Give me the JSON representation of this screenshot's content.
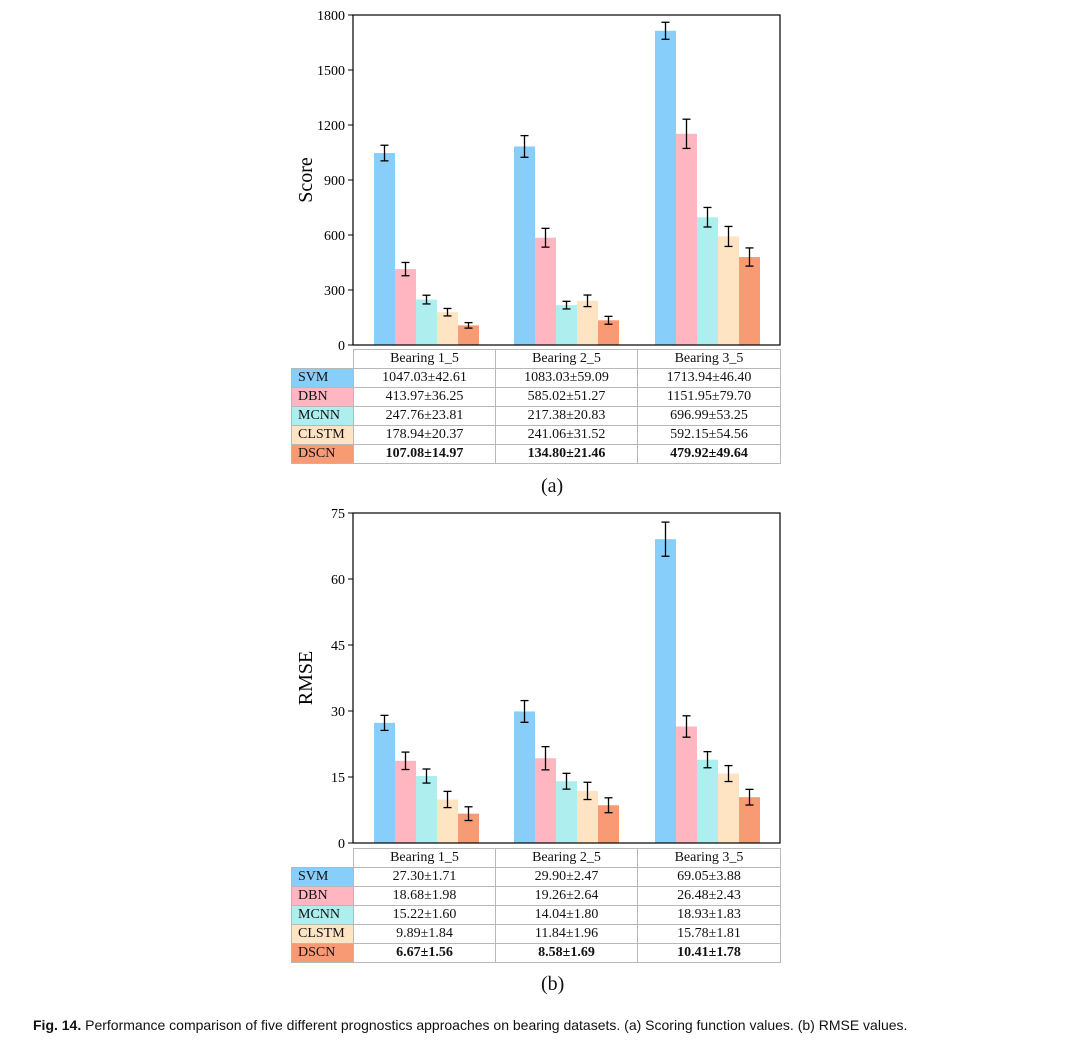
{
  "method_colors": {
    "SVM": "#87cefa",
    "DBN": "#ffb6c1",
    "MCNN": "#aeeeee",
    "CLSTM": "#ffe4c4",
    "DSCN": "#f89a74"
  },
  "chart_data": [
    {
      "id": "a",
      "type": "bar",
      "ylabel": "Score",
      "ylim": [
        0,
        1800
      ],
      "yticks": [
        0,
        300,
        600,
        900,
        1200,
        1500,
        1800
      ],
      "categories": [
        "Bearing 1_5",
        "Bearing 2_5",
        "Bearing 3_5"
      ],
      "series": [
        {
          "name": "SVM",
          "values": [
            1047.03,
            1083.03,
            1713.94
          ],
          "errors": [
            42.61,
            59.09,
            46.4
          ],
          "labels": [
            "1047.03±42.61",
            "1083.03±59.09",
            "1713.94±46.40"
          ]
        },
        {
          "name": "DBN",
          "values": [
            413.97,
            585.02,
            1151.95
          ],
          "errors": [
            36.25,
            51.27,
            79.7
          ],
          "labels": [
            "413.97±36.25",
            "585.02±51.27",
            "1151.95±79.70"
          ]
        },
        {
          "name": "MCNN",
          "values": [
            247.76,
            217.38,
            696.99
          ],
          "errors": [
            23.81,
            20.83,
            53.25
          ],
          "labels": [
            "247.76±23.81",
            "217.38±20.83",
            "696.99±53.25"
          ]
        },
        {
          "name": "CLSTM",
          "values": [
            178.94,
            241.06,
            592.15
          ],
          "errors": [
            20.37,
            31.52,
            54.56
          ],
          "labels": [
            "178.94±20.37",
            "241.06±31.52",
            "592.15±54.56"
          ]
        },
        {
          "name": "DSCN",
          "values": [
            107.08,
            134.8,
            479.92
          ],
          "errors": [
            14.97,
            21.46,
            49.64
          ],
          "labels": [
            "107.08±14.97",
            "134.80±21.46",
            "479.92±49.64"
          ]
        }
      ],
      "sublabel": "(a)"
    },
    {
      "id": "b",
      "type": "bar",
      "ylabel": "RMSE",
      "ylim": [
        0,
        75
      ],
      "yticks": [
        0,
        15,
        30,
        45,
        60,
        75
      ],
      "categories": [
        "Bearing 1_5",
        "Bearing 2_5",
        "Bearing 3_5"
      ],
      "series": [
        {
          "name": "SVM",
          "values": [
            27.3,
            29.9,
            69.05
          ],
          "errors": [
            1.71,
            2.47,
            3.88
          ],
          "labels": [
            "27.30±1.71",
            "29.90±2.47",
            "69.05±3.88"
          ]
        },
        {
          "name": "DBN",
          "values": [
            18.68,
            19.26,
            26.48
          ],
          "errors": [
            1.98,
            2.64,
            2.43
          ],
          "labels": [
            "18.68±1.98",
            "19.26±2.64",
            "26.48±2.43"
          ]
        },
        {
          "name": "MCNN",
          "values": [
            15.22,
            14.04,
            18.93
          ],
          "errors": [
            1.6,
            1.8,
            1.83
          ],
          "labels": [
            "15.22±1.60",
            "14.04±1.80",
            "18.93±1.83"
          ]
        },
        {
          "name": "CLSTM",
          "values": [
            9.89,
            11.84,
            15.78
          ],
          "errors": [
            1.84,
            1.96,
            1.81
          ],
          "labels": [
            "9.89±1.84",
            "11.84±1.96",
            "15.78±1.81"
          ]
        },
        {
          "name": "DSCN",
          "values": [
            6.67,
            8.58,
            10.41
          ],
          "errors": [
            1.56,
            1.69,
            1.78
          ],
          "labels": [
            "6.67±1.56",
            "8.58±1.69",
            "10.41±1.78"
          ]
        }
      ],
      "sublabel": "(b)"
    }
  ],
  "caption": {
    "label": "Fig. 14.",
    "text": "Performance comparison of five different prognostics approaches on bearing datasets. (a) Scoring function values. (b) RMSE values."
  }
}
